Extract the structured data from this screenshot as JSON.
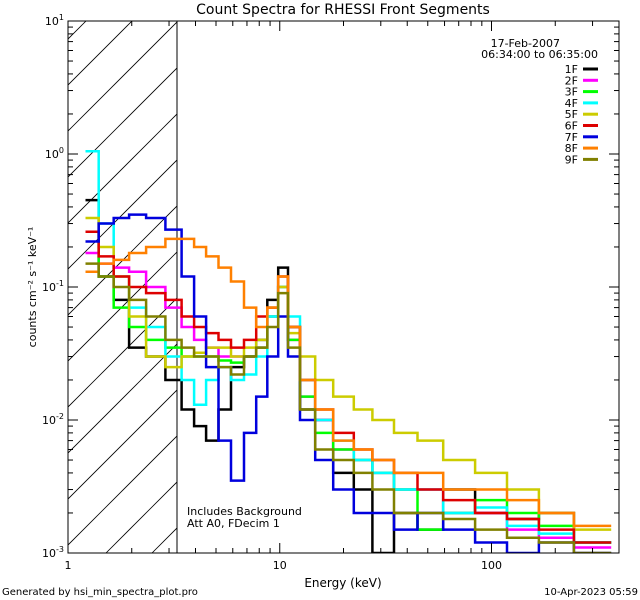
{
  "chart_data": {
    "type": "line",
    "title": "Count Spectra for RHESSI Front Segments",
    "xlabel": "Energy (keV)",
    "ylabel": "counts cm⁻² s⁻¹ keV⁻¹",
    "x_scale": "log",
    "y_scale": "log",
    "xlim": [
      1,
      400
    ],
    "ylim": [
      0.001,
      10
    ],
    "x_ticks": [
      {
        "value": 1,
        "label": "1"
      },
      {
        "value": 10,
        "label": "10"
      },
      {
        "value": 100,
        "label": "100"
      }
    ],
    "y_ticks": [
      {
        "value": 10,
        "base": "10",
        "exp": "1"
      },
      {
        "value": 1,
        "base": "10",
        "exp": "0"
      },
      {
        "value": 0.1,
        "base": "10",
        "exp": "-1"
      },
      {
        "value": 0.01,
        "base": "10",
        "exp": "-2"
      },
      {
        "value": 0.001,
        "base": "10",
        "exp": "-3"
      }
    ],
    "date": "17-Feb-2007",
    "time_range": "06:34:00 to 06:35:00",
    "shaded_region": {
      "from_kev": 1,
      "to_kev": 3,
      "note": "hatched low-energy region"
    },
    "annotations": [
      "Includes Background",
      "Att A0, FDecim 1"
    ],
    "series": [
      {
        "name": "1F",
        "color": "#000000",
        "x": [
          1.3,
          1.5,
          1.8,
          2.1,
          2.6,
          3.2,
          3.7,
          4.2,
          4.8,
          5.5,
          6.3,
          7.3,
          8.2,
          9.3,
          10.4,
          11.5,
          13.5,
          16,
          20,
          25,
          30,
          40,
          50,
          70,
          100,
          140,
          200,
          300
        ],
        "y": [
          0.45,
          0.12,
          0.08,
          0.035,
          0.03,
          0.02,
          0.012,
          0.009,
          0.007,
          0.012,
          0.025,
          0.03,
          0.04,
          0.08,
          0.14,
          0.05,
          0.012,
          0.01,
          0.004,
          0.003,
          0.001,
          0.002,
          0.0015,
          0.003,
          0.002,
          0.0018,
          0.002,
          0.0012
        ]
      },
      {
        "name": "2F",
        "color": "#ff00ff",
        "x": [
          1.3,
          1.5,
          1.8,
          2.1,
          2.6,
          3.2,
          3.7,
          4.2,
          4.8,
          5.5,
          6.3,
          7.3,
          8.2,
          9.3,
          10.4,
          11.5,
          13.5,
          16,
          20,
          25,
          30,
          40,
          50,
          70,
          100,
          140,
          200,
          300
        ],
        "y": [
          0.18,
          0.15,
          0.14,
          0.13,
          0.1,
          0.07,
          0.05,
          0.04,
          0.035,
          0.03,
          0.03,
          0.03,
          0.035,
          0.06,
          0.1,
          0.04,
          0.015,
          0.01,
          0.006,
          0.005,
          0.004,
          0.003,
          0.003,
          0.002,
          0.002,
          0.0015,
          0.0013,
          0.0011
        ]
      },
      {
        "name": "3F",
        "color": "#00ff00",
        "x": [
          1.3,
          1.5,
          1.8,
          2.1,
          2.6,
          3.2,
          3.7,
          4.2,
          4.8,
          5.5,
          6.3,
          7.3,
          8.2,
          9.3,
          10.4,
          11.5,
          13.5,
          16,
          20,
          25,
          30,
          40,
          50,
          70,
          100,
          140,
          200,
          300
        ],
        "y": [
          0.26,
          0.12,
          0.07,
          0.05,
          0.04,
          0.035,
          0.03,
          0.03,
          0.03,
          0.028,
          0.027,
          0.03,
          0.035,
          0.06,
          0.1,
          0.04,
          0.015,
          0.008,
          0.006,
          0.005,
          0.004,
          0.003,
          0.0015,
          0.002,
          0.0025,
          0.002,
          0.0016,
          0.0012
        ]
      },
      {
        "name": "4F",
        "color": "#00ffff",
        "x": [
          1.3,
          1.5,
          1.8,
          2.1,
          2.6,
          3.2,
          3.7,
          4.2,
          4.8,
          5.5,
          6.3,
          7.3,
          8.2,
          9.3,
          10.4,
          11.5,
          13.5,
          16,
          20,
          25,
          30,
          40,
          50,
          70,
          100,
          140,
          200,
          300
        ],
        "y": [
          1.05,
          0.3,
          0.12,
          0.07,
          0.05,
          0.03,
          0.02,
          0.013,
          0.02,
          0.025,
          0.02,
          0.022,
          0.03,
          0.06,
          0.1,
          0.06,
          0.02,
          0.01,
          0.007,
          0.005,
          0.004,
          0.003,
          0.003,
          0.002,
          0.0022,
          0.0016,
          0.0014,
          0.0012
        ]
      },
      {
        "name": "5F",
        "color": "#cccc00",
        "x": [
          1.3,
          1.5,
          1.8,
          2.1,
          2.6,
          3.2,
          3.7,
          4.2,
          4.8,
          5.5,
          6.3,
          7.3,
          8.2,
          9.3,
          10.4,
          11.5,
          13.5,
          16,
          20,
          25,
          30,
          40,
          50,
          70,
          100,
          140,
          200,
          300
        ],
        "y": [
          0.33,
          0.2,
          0.12,
          0.06,
          0.03,
          0.025,
          0.03,
          0.032,
          0.035,
          0.035,
          0.03,
          0.035,
          0.04,
          0.07,
          0.1,
          0.045,
          0.03,
          0.02,
          0.015,
          0.012,
          0.01,
          0.008,
          0.007,
          0.005,
          0.004,
          0.003,
          0.002,
          0.0015
        ]
      },
      {
        "name": "6F",
        "color": "#dd0000",
        "x": [
          1.3,
          1.5,
          1.8,
          2.1,
          2.6,
          3.2,
          3.7,
          4.2,
          4.8,
          5.5,
          6.3,
          7.3,
          8.2,
          9.3,
          10.4,
          11.5,
          13.5,
          16,
          20,
          25,
          30,
          40,
          50,
          70,
          100,
          140,
          200,
          300
        ],
        "y": [
          0.26,
          0.17,
          0.12,
          0.1,
          0.09,
          0.08,
          0.06,
          0.05,
          0.045,
          0.04,
          0.035,
          0.04,
          0.06,
          0.07,
          0.12,
          0.05,
          0.02,
          0.012,
          0.008,
          0.006,
          0.005,
          0.004,
          0.003,
          0.0025,
          0.002,
          0.0018,
          0.0015,
          0.0012
        ]
      },
      {
        "name": "7F",
        "color": "#0000dd",
        "x": [
          1.3,
          1.5,
          1.8,
          2.1,
          2.6,
          3.2,
          3.7,
          4.2,
          4.8,
          5.5,
          6.3,
          7.3,
          8.2,
          9.3,
          10.4,
          11.5,
          13.5,
          16,
          20,
          25,
          30,
          40,
          50,
          70,
          100,
          140,
          200,
          300
        ],
        "y": [
          0.22,
          0.3,
          0.33,
          0.35,
          0.33,
          0.27,
          0.12,
          0.06,
          0.025,
          0.007,
          0.0035,
          0.008,
          0.015,
          0.03,
          0.06,
          0.03,
          0.01,
          0.005,
          0.003,
          0.002,
          0.002,
          0.0015,
          0.002,
          0.0015,
          0.0012,
          0.001,
          0.0012,
          0.001
        ]
      },
      {
        "name": "8F",
        "color": "#ff8000",
        "x": [
          1.3,
          1.5,
          1.8,
          2.1,
          2.6,
          3.2,
          3.7,
          4.2,
          4.8,
          5.5,
          6.3,
          7.3,
          8.2,
          9.3,
          10.4,
          11.5,
          13.5,
          16,
          20,
          25,
          30,
          40,
          50,
          70,
          100,
          140,
          200,
          300
        ],
        "y": [
          0.13,
          0.15,
          0.16,
          0.18,
          0.2,
          0.23,
          0.23,
          0.2,
          0.17,
          0.14,
          0.11,
          0.07,
          0.05,
          0.07,
          0.12,
          0.05,
          0.02,
          0.012,
          0.007,
          0.006,
          0.005,
          0.004,
          0.004,
          0.003,
          0.003,
          0.0025,
          0.002,
          0.0016
        ]
      },
      {
        "name": "9F",
        "color": "#808000",
        "x": [
          1.3,
          1.5,
          1.8,
          2.1,
          2.6,
          3.2,
          3.7,
          4.2,
          4.8,
          5.5,
          6.3,
          7.3,
          8.2,
          9.3,
          10.4,
          11.5,
          13.5,
          16,
          20,
          25,
          30,
          40,
          50,
          70,
          100,
          140,
          200,
          300
        ],
        "y": [
          0.15,
          0.12,
          0.1,
          0.08,
          0.06,
          0.04,
          0.035,
          0.03,
          0.03,
          0.025,
          0.022,
          0.03,
          0.035,
          0.05,
          0.09,
          0.035,
          0.012,
          0.006,
          0.005,
          0.004,
          0.003,
          0.002,
          0.002,
          0.0018,
          0.0015,
          0.0013,
          0.0012,
          0.001
        ]
      }
    ]
  },
  "footer": {
    "left": "Generated by hsi_min_spectra_plot.pro",
    "right": "10-Apr-2023 05:59"
  }
}
